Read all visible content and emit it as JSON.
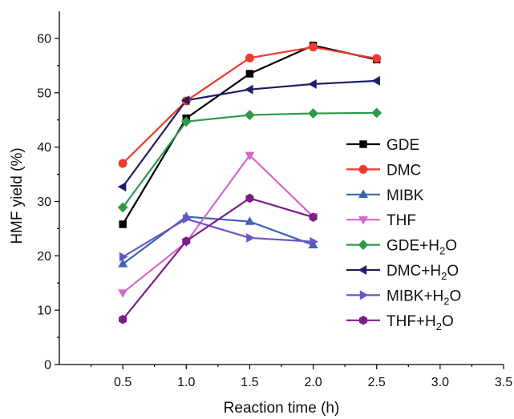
{
  "chart_data": {
    "type": "line",
    "title": "",
    "xlabel": "Reaction time (h)",
    "ylabel": "HMF yield (%)",
    "xlim": [
      0,
      3.5
    ],
    "ylim": [
      0,
      65
    ],
    "xticks": [
      "0.5",
      "1.0",
      "1.5",
      "2.0",
      "2.5",
      "3.0",
      "3.5"
    ],
    "xtick_values": [
      0.5,
      1.0,
      1.5,
      2.0,
      2.5,
      3.0,
      3.5
    ],
    "yticks": [
      "0",
      "10",
      "20",
      "30",
      "40",
      "50",
      "60"
    ],
    "ytick_values": [
      0,
      10,
      20,
      30,
      40,
      50,
      60
    ],
    "grid": false,
    "legend_position": "right",
    "series": [
      {
        "name": "GDE",
        "sub": "",
        "color": "#000000",
        "marker": "square",
        "x": [
          0.5,
          1.0,
          1.5,
          2.0,
          2.5
        ],
        "y": [
          25.8,
          45.3,
          53.5,
          58.7,
          56.1
        ]
      },
      {
        "name": "DMC",
        "sub": "",
        "color": "#ee3b2b",
        "marker": "circle",
        "x": [
          0.5,
          1.0,
          1.5,
          2.0,
          2.5
        ],
        "y": [
          37.0,
          48.5,
          56.4,
          58.4,
          56.3
        ]
      },
      {
        "name": "MIBK",
        "sub": "",
        "color": "#3b63b6",
        "marker": "triangle-up",
        "x": [
          0.5,
          1.0,
          1.5,
          2.0
        ],
        "y": [
          18.5,
          27.2,
          26.3,
          22.0
        ]
      },
      {
        "name": "THF",
        "sub": "",
        "color": "#d567c6",
        "marker": "triangle-down",
        "x": [
          0.5,
          1.0,
          1.5,
          2.0
        ],
        "y": [
          13.2,
          22.5,
          38.5,
          27.2
        ]
      },
      {
        "name": "GDE+H",
        "sub": "2",
        "suffix": "O",
        "color": "#2e9a47",
        "marker": "diamond",
        "x": [
          0.5,
          1.0,
          1.5,
          2.0,
          2.5
        ],
        "y": [
          28.9,
          44.7,
          45.9,
          46.2,
          46.3
        ]
      },
      {
        "name": "DMC+H",
        "sub": "2",
        "suffix": "O",
        "color": "#1d1d6b",
        "marker": "triangle-left",
        "x": [
          0.5,
          1.0,
          1.5,
          2.0,
          2.5
        ],
        "y": [
          32.7,
          48.6,
          50.6,
          51.6,
          52.2
        ]
      },
      {
        "name": "MIBK+H",
        "sub": "2",
        "suffix": "O",
        "color": "#6a55c6",
        "marker": "triangle-right",
        "x": [
          0.5,
          1.0,
          1.5,
          2.0
        ],
        "y": [
          19.8,
          26.8,
          23.3,
          22.6
        ]
      },
      {
        "name": "THF+H",
        "sub": "2",
        "suffix": "O",
        "color": "#7b1f86",
        "marker": "hexagon",
        "x": [
          0.5,
          1.0,
          1.5,
          2.0
        ],
        "y": [
          8.3,
          22.7,
          30.6,
          27.1
        ]
      }
    ]
  }
}
